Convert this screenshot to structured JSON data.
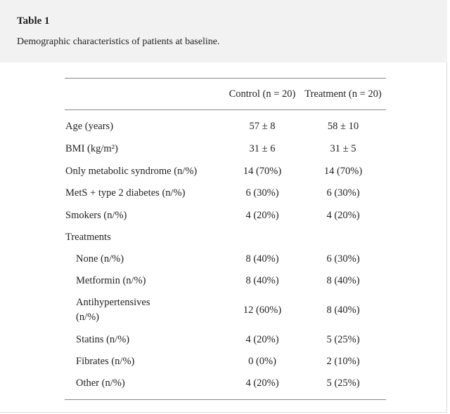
{
  "table": {
    "label": "Table 1",
    "caption": "Demographic characteristics of patients at baseline.",
    "headers": {
      "control": "Control (n = 20)",
      "treatment": "Treatment (n = 20)"
    },
    "rows": [
      {
        "label": "Age (years)",
        "control": "57 ± 8",
        "treatment": "58 ± 10"
      },
      {
        "label": "BMI (kg/m²)",
        "control": "31 ± 6",
        "treatment": "31 ± 5"
      },
      {
        "label": "Only metabolic syndrome (n/%)",
        "control": "14 (70%)",
        "treatment": "14 (70%)"
      },
      {
        "label": "MetS + type 2 diabetes (n/%)",
        "control": "6 (30%)",
        "treatment": "6 (30%)"
      },
      {
        "label": "Smokers (n/%)",
        "control": "4 (20%)",
        "treatment": "4 (20%)"
      },
      {
        "label": "Treatments",
        "control": "",
        "treatment": ""
      },
      {
        "label": "None (n/%)",
        "control": "8 (40%)",
        "treatment": "6 (30%)"
      },
      {
        "label": "Metformin (n/%)",
        "control": "8 (40%)",
        "treatment": "8 (40%)"
      },
      {
        "label": "Antihypertensives",
        "label2": "(n/%)",
        "control": "12 (60%)",
        "treatment": "8 (40%)"
      },
      {
        "label": "Statins (n/%)",
        "control": "4 (20%)",
        "treatment": "5 (25%)"
      },
      {
        "label": "Fibrates (n/%)",
        "control": "0 (0%)",
        "treatment": "2 (10%)"
      },
      {
        "label": "Other (n/%)",
        "control": "4 (20%)",
        "treatment": "5 (25%)"
      }
    ]
  }
}
